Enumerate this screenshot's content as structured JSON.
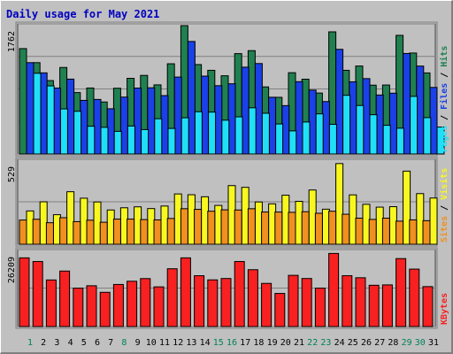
{
  "chart_data": [
    {
      "type": "bar",
      "categories": [
        "1",
        "2",
        "3",
        "4",
        "5",
        "6",
        "7",
        "8",
        "9",
        "10",
        "11",
        "12",
        "13",
        "14",
        "15",
        "16",
        "17",
        "18",
        "19",
        "20",
        "21",
        "22",
        "23",
        "24",
        "25",
        "26",
        "27",
        "28",
        "29",
        "30",
        "31"
      ],
      "weekend_days": [
        "1",
        "8",
        "15",
        "16",
        "22",
        "23",
        "29",
        "30"
      ],
      "title": "Daily usage for May 2021",
      "y_tick_label": "1762",
      "ylim": [
        0,
        1762
      ],
      "grid": true,
      "series": [
        {
          "name": "Hits",
          "color": "#208050",
          "values": [
            1447,
            1254,
            1008,
            1188,
            843,
            906,
            714,
            903,
            1039,
            1079,
            949,
            1239,
            1762,
            1228,
            1149,
            1074,
            1378,
            1419,
            921,
            778,
            1116,
            1027,
            837,
            1677,
            1149,
            1208,
            945,
            947,
            1629,
            1386,
            1113
          ]
        },
        {
          "name": "Files",
          "color": "#1a40e8",
          "values": [
            1254,
            1114,
            905,
            1028,
            736,
            749,
            621,
            781,
            905,
            909,
            802,
            1056,
            1545,
            1069,
            938,
            964,
            1192,
            1242,
            779,
            664,
            993,
            877,
            720,
            1437,
            991,
            1035,
            810,
            835,
            1380,
            1207,
            914
          ]
        },
        {
          "name": "Pages",
          "color": "#20e0f8",
          "values": [
            1108,
            935,
            619,
            586,
            381,
            366,
            311,
            384,
            335,
            484,
            351,
            497,
            580,
            575,
            464,
            510,
            634,
            559,
            412,
            317,
            439,
            551,
            407,
            806,
            666,
            539,
            394,
            354,
            791,
            499,
            370
          ]
        }
      ],
      "y_axis_legend": [
        "Pages",
        "Files",
        "Hits"
      ]
    },
    {
      "type": "bar",
      "categories": [
        "1",
        "2",
        "3",
        "4",
        "5",
        "6",
        "7",
        "8",
        "9",
        "10",
        "11",
        "12",
        "13",
        "14",
        "15",
        "16",
        "17",
        "18",
        "19",
        "20",
        "21",
        "22",
        "23",
        "24",
        "25",
        "26",
        "27",
        "28",
        "29",
        "30",
        "31"
      ],
      "y_tick_label": "529",
      "ylim": [
        0,
        529
      ],
      "grid": true,
      "series": [
        {
          "name": "Visits",
          "color": "#f8f820",
          "values": [
            212,
            270,
            188,
            334,
            293,
            269,
            218,
            232,
            238,
            227,
            243,
            320,
            315,
            302,
            247,
            373,
            362,
            269,
            257,
            312,
            273,
            345,
            223,
            513,
            314,
            254,
            236,
            239,
            465,
            322,
            294
          ]
        },
        {
          "name": "Sites",
          "color": "#f09020",
          "values": [
            154,
            159,
            137,
            169,
            144,
            153,
            140,
            160,
            160,
            157,
            155,
            164,
            226,
            222,
            210,
            219,
            218,
            226,
            205,
            205,
            203,
            207,
            197,
            210,
            191,
            166,
            158,
            166,
            147,
            155,
            150
          ]
        }
      ],
      "y_axis_legend": [
        "Sites",
        "Visits"
      ]
    },
    {
      "type": "bar",
      "categories": [
        "1",
        "2",
        "3",
        "4",
        "5",
        "6",
        "7",
        "8",
        "9",
        "10",
        "11",
        "12",
        "13",
        "14",
        "15",
        "16",
        "17",
        "18",
        "19",
        "20",
        "21",
        "22",
        "23",
        "24",
        "25",
        "26",
        "27",
        "28",
        "29",
        "30",
        "31"
      ],
      "y_tick_label": "26209",
      "ylim": [
        0,
        26209
      ],
      "grid": true,
      "series": [
        {
          "name": "KBytes",
          "color": "#f82020",
          "values": [
            23940,
            22670,
            16240,
            19340,
            13380,
            14220,
            11930,
            14670,
            15790,
            16720,
            13830,
            20140,
            23940,
            17720,
            16270,
            16750,
            22670,
            19810,
            15040,
            11550,
            17850,
            16750,
            13380,
            25480,
            17720,
            17010,
            14390,
            14520,
            23680,
            20020,
            13920
          ]
        }
      ],
      "y_axis_legend": [
        "KBytes"
      ]
    }
  ]
}
